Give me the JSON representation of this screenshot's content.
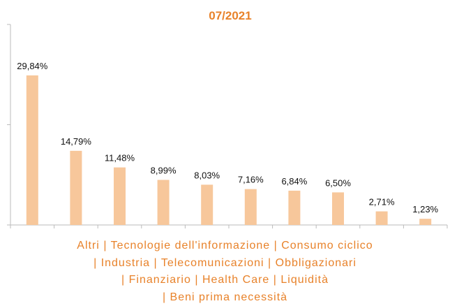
{
  "chart_data": {
    "type": "bar",
    "title": "07/2021",
    "categories": [
      "Altri",
      "Tecnologie dell'informazione",
      "Consumo ciclico",
      "Industria",
      "Telecomunicazioni",
      "Obbligazionari",
      "Finanziario",
      "Health Care",
      "Liquidità",
      "Beni prima necessità"
    ],
    "values": [
      29.84,
      14.79,
      11.48,
      8.99,
      8.03,
      7.16,
      6.84,
      6.5,
      2.71,
      1.23
    ],
    "value_labels": [
      "29,84%",
      "14,79%",
      "11,48%",
      "8,99%",
      "8,03%",
      "7,16%",
      "6,84%",
      "6,50%",
      "2,71%",
      "1,23%"
    ],
    "color": "#f7c79b",
    "ylim": [
      0,
      40
    ],
    "yticks": [
      0,
      20,
      40
    ],
    "grid": false
  }
}
